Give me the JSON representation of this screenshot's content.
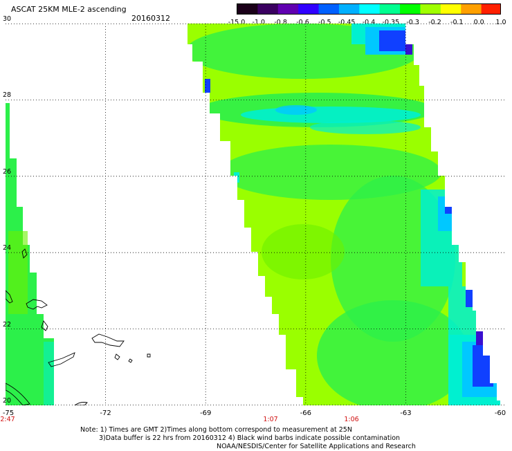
{
  "header": {
    "title": "ASCAT 25KM MLE-2 ascending",
    "date": "20160312"
  },
  "colorbar": {
    "labels": [
      "-15.0",
      "-1.0",
      "-0.8",
      "-0.6",
      "-0.5",
      "-0.45",
      "-0.4",
      "-0.35",
      "-0.3",
      "-0.2",
      "-0.1",
      "0.0",
      "1.0"
    ],
    "colors": [
      "#1a0018",
      "#3a0060",
      "#6000b0",
      "#3000ff",
      "#0060ff",
      "#00b0ff",
      "#00ffff",
      "#00ff90",
      "#00ff00",
      "#a0ff00",
      "#ffff00",
      "#ffa000",
      "#ff2000"
    ]
  },
  "axes": {
    "lat_ticks": [
      "30",
      "28",
      "26",
      "24",
      "22",
      "20"
    ],
    "lon_ticks": [
      "-75",
      "-72",
      "-69",
      "-66",
      "-63",
      "-60"
    ],
    "lon_range": [
      -75,
      -60
    ],
    "lat_range": [
      20,
      30
    ]
  },
  "times": [
    "2:47",
    "1:07",
    "1:06"
  ],
  "notes": {
    "line1": "Note: 1) Times are GMT 2)Times along bottom correspond to measurement at 25N",
    "line2": "3)Data buffer is 22 hrs from 20160312 4) Black wind barbs indicate possible contamination",
    "line3": "NOAA/NESDIS/Center for Satellite Applications and Research"
  },
  "swath_colors": {
    "base": "#9aff00",
    "mid": "#6cf000",
    "green": "#2cf04a",
    "cyan": "#00f0d0",
    "aqua": "#00c8ff",
    "blue": "#1040ff",
    "violet": "#3a10d0"
  }
}
